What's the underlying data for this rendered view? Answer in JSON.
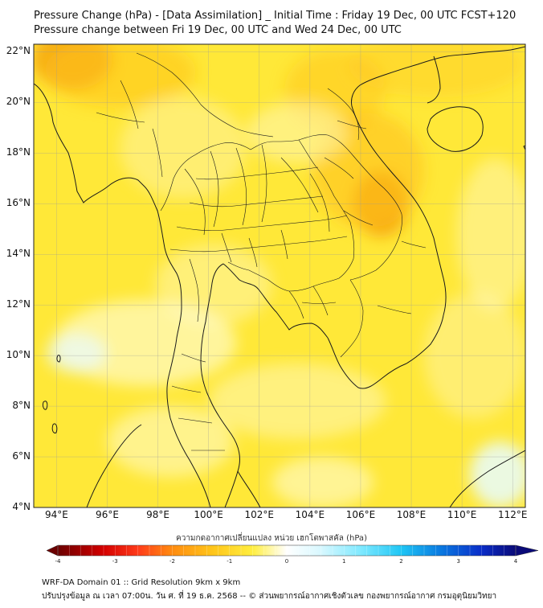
{
  "title_line1": "Pressure Change (hPa) - [Data Assimilation] _ Initial Time : Friday 19 Dec, 00 UTC FCST+120",
  "title_line2": "Pressure change between Fri 19 Dec, 00 UTC and Wed 24 Dec, 00 UTC",
  "map": {
    "lat_labels": [
      "22°N",
      "20°N",
      "18°N",
      "16°N",
      "14°N",
      "12°N",
      "10°N",
      "8°N",
      "6°N",
      "4°N"
    ],
    "lon_labels": [
      "94°E",
      "96°E",
      "98°E",
      "100°E",
      "102°E",
      "104°E",
      "106°E",
      "108°E",
      "110°E",
      "112°E"
    ],
    "lat_range": [
      4,
      22.3
    ],
    "lon_range": [
      93.1,
      112.5
    ],
    "field_colors": {
      "background": "#ffe838",
      "light": "#fff7b8",
      "lighter": "#fffde0",
      "strong": "#ffc21a",
      "stronger": "#f5a30e",
      "positive": "#e8fbff"
    },
    "field_blobs": [
      {
        "lon": 94.6,
        "lat": 21.7,
        "rx": 1.6,
        "ry": 1.2,
        "color": "stronger",
        "opacity": 0.85
      },
      {
        "lon": 96.5,
        "lat": 21.2,
        "rx": 3.0,
        "ry": 1.4,
        "color": "strong",
        "opacity": 0.55
      },
      {
        "lon": 106.8,
        "lat": 16.0,
        "rx": 1.1,
        "ry": 1.3,
        "color": "stronger",
        "opacity": 0.95
      },
      {
        "lon": 106.3,
        "lat": 17.3,
        "rx": 2.2,
        "ry": 2.3,
        "color": "strong",
        "opacity": 0.6
      },
      {
        "lon": 105.0,
        "lat": 20.5,
        "rx": 2.0,
        "ry": 1.6,
        "color": "strong",
        "opacity": 0.45
      },
      {
        "lon": 109.0,
        "lat": 21.5,
        "rx": 3.5,
        "ry": 1.3,
        "color": "strong",
        "opacity": 0.35
      },
      {
        "lon": 103.5,
        "lat": 18.8,
        "rx": 2.0,
        "ry": 1.2,
        "color": "light",
        "opacity": 0.55
      },
      {
        "lon": 99.0,
        "lat": 18.2,
        "rx": 2.5,
        "ry": 2.0,
        "color": "light",
        "opacity": 0.45
      },
      {
        "lon": 100.2,
        "lat": 12.8,
        "rx": 2.3,
        "ry": 1.6,
        "color": "light",
        "opacity": 0.5
      },
      {
        "lon": 97.5,
        "lat": 10.5,
        "rx": 3.6,
        "ry": 1.7,
        "color": "lighter",
        "opacity": 0.6
      },
      {
        "lon": 94.8,
        "lat": 10.1,
        "rx": 1.2,
        "ry": 0.8,
        "color": "positive",
        "opacity": 0.7
      },
      {
        "lon": 103.5,
        "lat": 8.2,
        "rx": 3.5,
        "ry": 1.5,
        "color": "light",
        "opacity": 0.55
      },
      {
        "lon": 98.5,
        "lat": 6.6,
        "rx": 2.5,
        "ry": 1.4,
        "color": "lighter",
        "opacity": 0.5
      },
      {
        "lon": 104.5,
        "lat": 5.0,
        "rx": 2.0,
        "ry": 1.0,
        "color": "lighter",
        "opacity": 0.55
      },
      {
        "lon": 111.5,
        "lat": 5.3,
        "rx": 1.2,
        "ry": 1.3,
        "color": "positive",
        "opacity": 0.85
      },
      {
        "lon": 110.5,
        "lat": 10.0,
        "rx": 2.0,
        "ry": 2.5,
        "color": "light",
        "opacity": 0.45
      },
      {
        "lon": 111.3,
        "lat": 14.8,
        "rx": 1.5,
        "ry": 3.0,
        "color": "lighter",
        "opacity": 0.4
      }
    ]
  },
  "colorbar": {
    "label": "ความกดอากาศเปลี่ยนแปลง หน่วย เฮกโตพาสคัล (hPa)",
    "ticks": [
      "-4",
      "-3",
      "-2",
      "-1",
      "0",
      "1",
      "2",
      "3",
      "4"
    ],
    "range": [
      -4,
      4
    ],
    "stops": [
      {
        "v": -4,
        "color": "#6b0000"
      },
      {
        "v": -3.2,
        "color": "#d40000"
      },
      {
        "v": -2.6,
        "color": "#ff3b1a"
      },
      {
        "v": -2.0,
        "color": "#ff8c10"
      },
      {
        "v": -1.3,
        "color": "#ffc51a"
      },
      {
        "v": -0.6,
        "color": "#ffee40"
      },
      {
        "v": 0,
        "color": "#ffffff"
      },
      {
        "v": 0.6,
        "color": "#d8f8ff"
      },
      {
        "v": 1.3,
        "color": "#7fe9ff"
      },
      {
        "v": 2.0,
        "color": "#1fc6f5"
      },
      {
        "v": 2.7,
        "color": "#0a78e0"
      },
      {
        "v": 3.4,
        "color": "#0a2dc8"
      },
      {
        "v": 4,
        "color": "#0a0a78"
      }
    ]
  },
  "footer_line1": "WRF-DA Domain 01 :: Grid Resolution 9km x 9km",
  "footer_line2": "ปรับปรุงข้อมูล ณ เวลา 07:00น. วัน ศ. ที่ 19 ธ.ค. 2568 -- © ส่วนพยากรณ์อากาศเชิงตัวเลข กองพยากรณ์อากาศ กรมอุตุนิยมวิทยา"
}
